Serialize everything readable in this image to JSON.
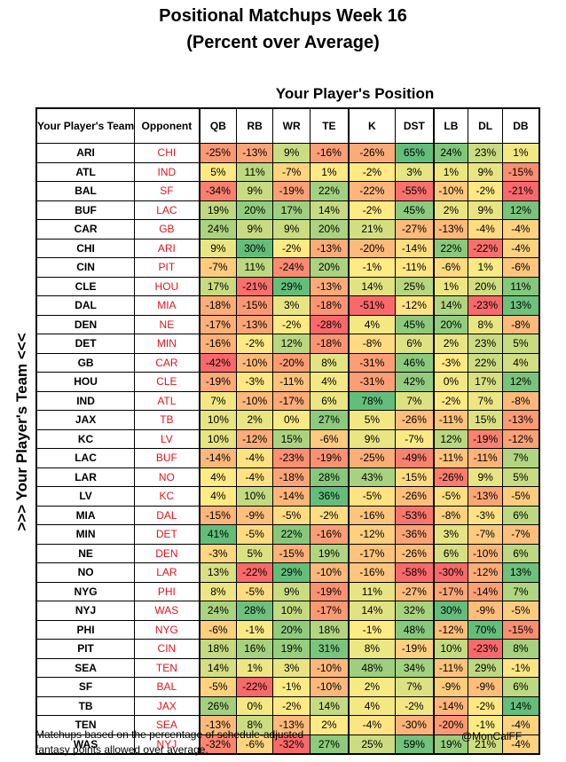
{
  "title_line1": "Positional Matchups Week 16",
  "title_line2": "(Percent over Average)",
  "col_group_label": "Your Player's Position",
  "row_group_label": ">>>  Your Player's Team  <<<",
  "footer_line1": "Matchups based on the percentage of schedule-adjusted",
  "footer_line2": "fantasy points allowed over average.",
  "credit": "@MonCalFF",
  "chart_data": {
    "type": "table",
    "row_header": "Your Player's Team",
    "opponent_header": "Opponent",
    "columns": [
      "QB",
      "RB",
      "WR",
      "TE",
      "K",
      "DST",
      "LB",
      "DL",
      "DB"
    ],
    "color_scale": {
      "low": "#f8696b",
      "mid": "#ffeb84",
      "high": "#63be7b"
    },
    "rows": [
      {
        "team": "ARI",
        "opponent": "CHI",
        "values": [
          -25,
          -13,
          9,
          -16,
          -26,
          65,
          24,
          23,
          1
        ]
      },
      {
        "team": "ATL",
        "opponent": "IND",
        "values": [
          5,
          11,
          -7,
          1,
          -2,
          3,
          1,
          9,
          -15
        ]
      },
      {
        "team": "BAL",
        "opponent": "SF",
        "values": [
          -34,
          9,
          -19,
          22,
          -22,
          -55,
          -10,
          -2,
          -21
        ]
      },
      {
        "team": "BUF",
        "opponent": "LAC",
        "values": [
          19,
          20,
          17,
          14,
          -2,
          45,
          2,
          9,
          12
        ]
      },
      {
        "team": "CAR",
        "opponent": "GB",
        "values": [
          24,
          9,
          9,
          20,
          21,
          -27,
          -13,
          -4,
          -4
        ]
      },
      {
        "team": "CHI",
        "opponent": "ARI",
        "values": [
          9,
          30,
          -2,
          -13,
          -20,
          -14,
          22,
          -22,
          -4
        ]
      },
      {
        "team": "CIN",
        "opponent": "PIT",
        "values": [
          -7,
          11,
          -24,
          20,
          -1,
          -11,
          -6,
          1,
          -6
        ]
      },
      {
        "team": "CLE",
        "opponent": "HOU",
        "values": [
          17,
          -21,
          29,
          -13,
          14,
          25,
          1,
          20,
          11
        ]
      },
      {
        "team": "DAL",
        "opponent": "MIA",
        "values": [
          -18,
          -15,
          3,
          -18,
          -51,
          -12,
          14,
          -23,
          13
        ]
      },
      {
        "team": "DEN",
        "opponent": "NE",
        "values": [
          -17,
          -13,
          -2,
          -28,
          4,
          45,
          20,
          8,
          -8
        ]
      },
      {
        "team": "DET",
        "opponent": "MIN",
        "values": [
          -16,
          -2,
          12,
          -18,
          -8,
          6,
          2,
          23,
          5
        ]
      },
      {
        "team": "GB",
        "opponent": "CAR",
        "values": [
          -42,
          -10,
          -20,
          8,
          -31,
          46,
          -3,
          22,
          4
        ]
      },
      {
        "team": "HOU",
        "opponent": "CLE",
        "values": [
          -19,
          -3,
          -11,
          4,
          -31,
          42,
          0,
          17,
          12
        ]
      },
      {
        "team": "IND",
        "opponent": "ATL",
        "values": [
          7,
          -10,
          -17,
          6,
          78,
          7,
          -2,
          7,
          -8
        ]
      },
      {
        "team": "JAX",
        "opponent": "TB",
        "values": [
          10,
          2,
          0,
          27,
          5,
          -26,
          -11,
          15,
          -13
        ]
      },
      {
        "team": "KC",
        "opponent": "LV",
        "values": [
          10,
          -12,
          15,
          -6,
          9,
          -7,
          12,
          -19,
          -12
        ]
      },
      {
        "team": "LAC",
        "opponent": "BUF",
        "values": [
          -14,
          -4,
          -23,
          -19,
          -25,
          -49,
          -11,
          -11,
          7
        ]
      },
      {
        "team": "LAR",
        "opponent": "NO",
        "values": [
          4,
          -4,
          -18,
          28,
          43,
          -15,
          -26,
          9,
          5
        ]
      },
      {
        "team": "LV",
        "opponent": "KC",
        "values": [
          4,
          10,
          -14,
          36,
          -5,
          -26,
          -5,
          -13,
          -5
        ]
      },
      {
        "team": "MIA",
        "opponent": "DAL",
        "values": [
          -15,
          -9,
          -5,
          -2,
          -16,
          -53,
          -8,
          -3,
          6
        ]
      },
      {
        "team": "MIN",
        "opponent": "DET",
        "values": [
          41,
          -5,
          22,
          -16,
          -12,
          -36,
          3,
          -7,
          -7
        ]
      },
      {
        "team": "NE",
        "opponent": "DEN",
        "values": [
          -3,
          5,
          -15,
          19,
          -17,
          -26,
          6,
          -10,
          6
        ]
      },
      {
        "team": "NO",
        "opponent": "LAR",
        "values": [
          13,
          -22,
          29,
          -10,
          -16,
          -58,
          -30,
          -12,
          13
        ]
      },
      {
        "team": "NYG",
        "opponent": "PHI",
        "values": [
          8,
          -5,
          9,
          -19,
          11,
          -27,
          -17,
          -14,
          7
        ]
      },
      {
        "team": "NYJ",
        "opponent": "WAS",
        "values": [
          24,
          28,
          10,
          -17,
          14,
          32,
          30,
          -9,
          -5
        ]
      },
      {
        "team": "PHI",
        "opponent": "NYG",
        "values": [
          -6,
          -1,
          20,
          18,
          -1,
          48,
          -12,
          70,
          -15
        ]
      },
      {
        "team": "PIT",
        "opponent": "CIN",
        "values": [
          18,
          16,
          19,
          31,
          8,
          -19,
          10,
          -23,
          8
        ]
      },
      {
        "team": "SEA",
        "opponent": "TEN",
        "values": [
          14,
          1,
          3,
          -10,
          48,
          34,
          -11,
          29,
          -1
        ]
      },
      {
        "team": "SF",
        "opponent": "BAL",
        "values": [
          -5,
          -22,
          -1,
          -10,
          2,
          7,
          -9,
          -9,
          6
        ]
      },
      {
        "team": "TB",
        "opponent": "JAX",
        "values": [
          26,
          0,
          -2,
          14,
          4,
          -2,
          -14,
          -2,
          14
        ]
      },
      {
        "team": "TEN",
        "opponent": "SEA",
        "values": [
          -13,
          8,
          -13,
          2,
          -4,
          -30,
          -20,
          -1,
          -4
        ]
      },
      {
        "team": "WAS",
        "opponent": "NYJ",
        "values": [
          -32,
          -6,
          -32,
          27,
          25,
          59,
          19,
          21,
          -4
        ]
      }
    ]
  }
}
